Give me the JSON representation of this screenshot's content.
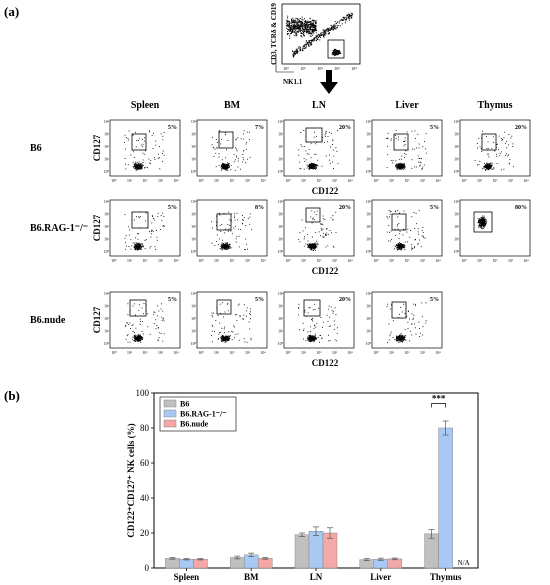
{
  "panel_labels": {
    "a": "(a)",
    "b": "(b)"
  },
  "top_gate": {
    "y_label": "CD3, TCRδ & CD19",
    "x_label": "NK1.1",
    "ticks": [
      "10⁰",
      "10¹",
      "10²",
      "10³",
      "10⁴"
    ]
  },
  "flow": {
    "columns": [
      "Spleen",
      "BM",
      "LN",
      "Liver",
      "Thymus"
    ],
    "x_axis_label": "CD122",
    "y_axis_label": "CD127",
    "ticks": [
      "10⁰",
      "10¹",
      "10²",
      "10³",
      "10⁴"
    ],
    "rows": [
      {
        "name": "B6",
        "percents": [
          "5%",
          "7%",
          "20%",
          "5%",
          "20%"
        ]
      },
      {
        "name": "B6.RAG-1⁻/⁻",
        "percents": [
          "5%",
          "8%",
          "20%",
          "5%",
          "80%"
        ]
      },
      {
        "name": "B6.nude",
        "percents": [
          "5%",
          "5%",
          "20%",
          "5%"
        ]
      }
    ]
  },
  "chart_data": {
    "type": "bar",
    "ylabel": "CD122⁺CD127⁺ NK cells (%)",
    "ylim": [
      0,
      100
    ],
    "yticks": [
      "0",
      "20",
      "40",
      "60",
      "80",
      "100"
    ],
    "categories": [
      "Spleen",
      "BM",
      "LN",
      "Liver",
      "Thymus"
    ],
    "series": [
      {
        "name": "B6",
        "color": "#c0c0c0",
        "values": [
          5.5,
          6,
          19,
          4.8,
          19.5
        ],
        "errors": [
          0.5,
          0.8,
          1,
          0.6,
          2.5
        ]
      },
      {
        "name": "B6.RAG-1⁻/⁻",
        "color": "#a9c9f5",
        "values": [
          5,
          7.5,
          21,
          5,
          80
        ],
        "errors": [
          0.4,
          1,
          2.5,
          0.6,
          4
        ]
      },
      {
        "name": "B6.nude",
        "color": "#f4a8a8",
        "values": [
          5,
          5.5,
          20,
          5.2,
          null
        ],
        "errors": [
          0.4,
          0.5,
          3,
          0.5,
          null
        ]
      }
    ],
    "annotations": {
      "significance": "***",
      "na": "N/A"
    },
    "legend": "top-left"
  }
}
